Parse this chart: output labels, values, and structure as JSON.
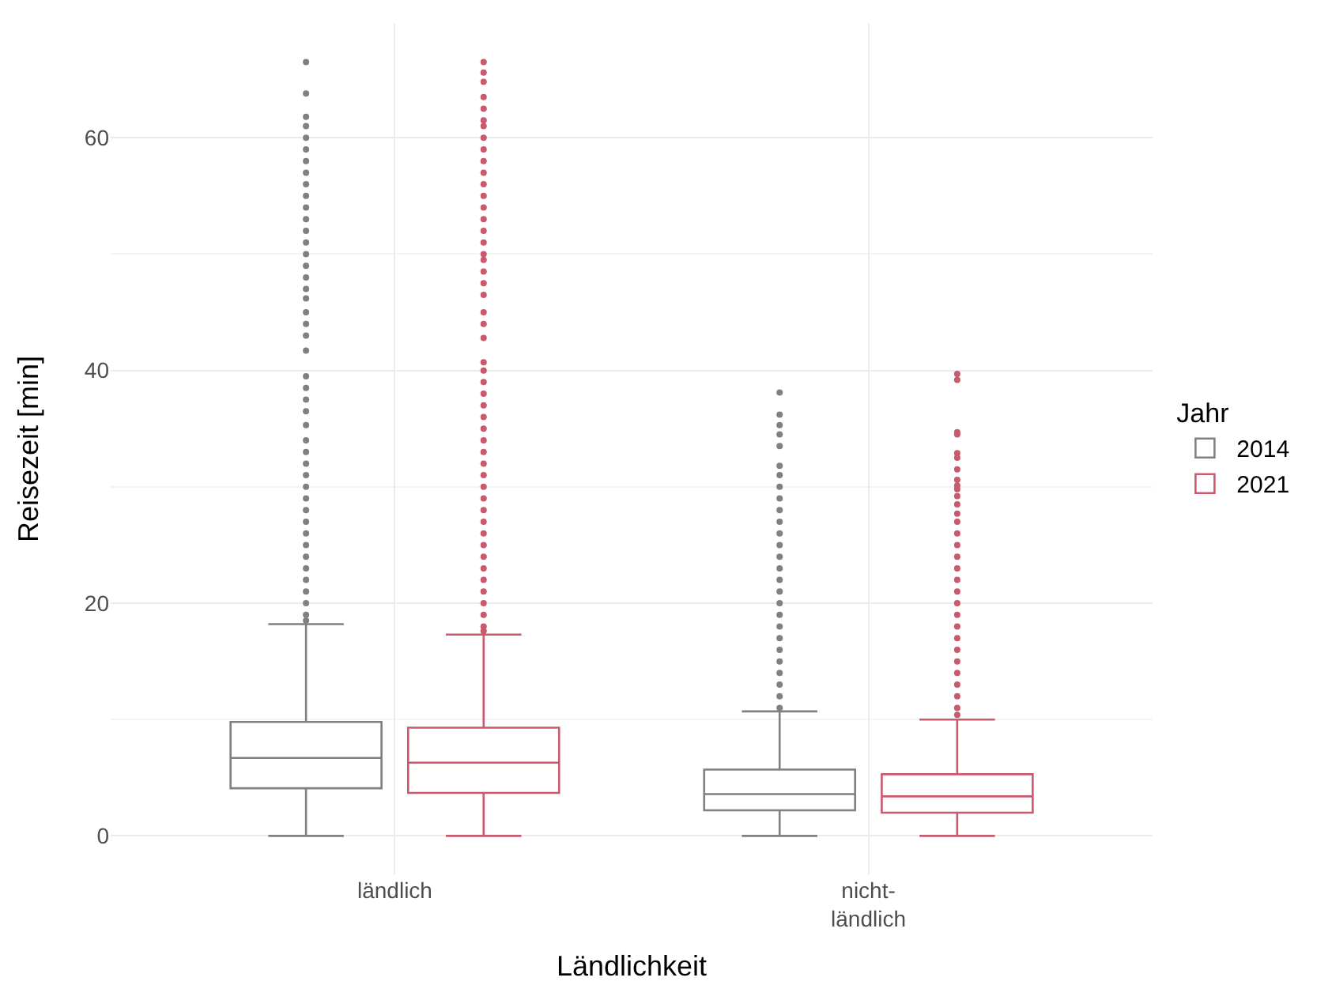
{
  "chart_data": {
    "type": "box",
    "xlabel": "Ländlichkeit",
    "ylabel": "Reisezeit [min]",
    "legend_title": "Jahr",
    "legend": "right",
    "grid": true,
    "categories": [
      "ländlich",
      "nicht-\nländlich"
    ],
    "ylim": [
      -3.3,
      69.8
    ],
    "yticks": [
      0,
      20,
      40,
      60
    ],
    "series": [
      {
        "name": "2014",
        "color": "#808080",
        "boxes": [
          {
            "low": 0,
            "q1": 4.1,
            "median": 6.7,
            "q3": 9.8,
            "high": 18.2,
            "outliers": [
              66.5,
              63.8,
              61.8,
              61,
              60,
              59,
              58,
              57,
              56,
              55,
              54,
              53,
              52,
              51,
              50,
              49,
              48,
              47,
              46.2,
              45,
              44,
              43,
              41.7,
              39.5,
              38.5,
              37.5,
              36.5,
              35.3,
              34,
              33,
              32,
              31,
              30,
              29,
              28,
              27,
              26,
              25,
              24,
              23,
              22,
              21,
              20,
              19,
              18.5
            ]
          },
          {
            "low": 0,
            "q1": 2.2,
            "median": 3.6,
            "q3": 5.7,
            "high": 10.7,
            "outliers": [
              38.1,
              36.2,
              35.3,
              34.5,
              33.5,
              31.8,
              31,
              30,
              29,
              28,
              27,
              26,
              25,
              24,
              23,
              22,
              21,
              20,
              19,
              18,
              17,
              16,
              15,
              14,
              13,
              12,
              11
            ]
          }
        ]
      },
      {
        "name": "2021",
        "color": "#c9596c",
        "boxes": [
          {
            "low": 0,
            "q1": 3.7,
            "median": 6.3,
            "q3": 9.3,
            "high": 17.3,
            "outliers": [
              66.5,
              65.6,
              64.8,
              63.5,
              62.5,
              61.5,
              61,
              60,
              59,
              58,
              57,
              56,
              55,
              54,
              53,
              52,
              51,
              50,
              49.5,
              48.5,
              47.5,
              46.5,
              45,
              44,
              42.8,
              40.7,
              40,
              39,
              38,
              37,
              36,
              35,
              34,
              33,
              32,
              31,
              30,
              29,
              28,
              27,
              26,
              25,
              24,
              23,
              22,
              21,
              20,
              19,
              18,
              17.6
            ]
          },
          {
            "low": 0,
            "q1": 2.0,
            "median": 3.4,
            "q3": 5.3,
            "high": 10.0,
            "outliers": [
              39.7,
              39.2,
              34.7,
              34.5,
              32.9,
              32.5,
              31.5,
              30.6,
              30.1,
              29.8,
              29.2,
              28.5,
              27.7,
              27,
              26,
              25,
              24,
              23,
              22,
              21,
              20,
              19,
              18,
              17,
              16,
              15,
              14,
              13,
              12,
              11,
              10.4
            ]
          }
        ]
      }
    ]
  }
}
